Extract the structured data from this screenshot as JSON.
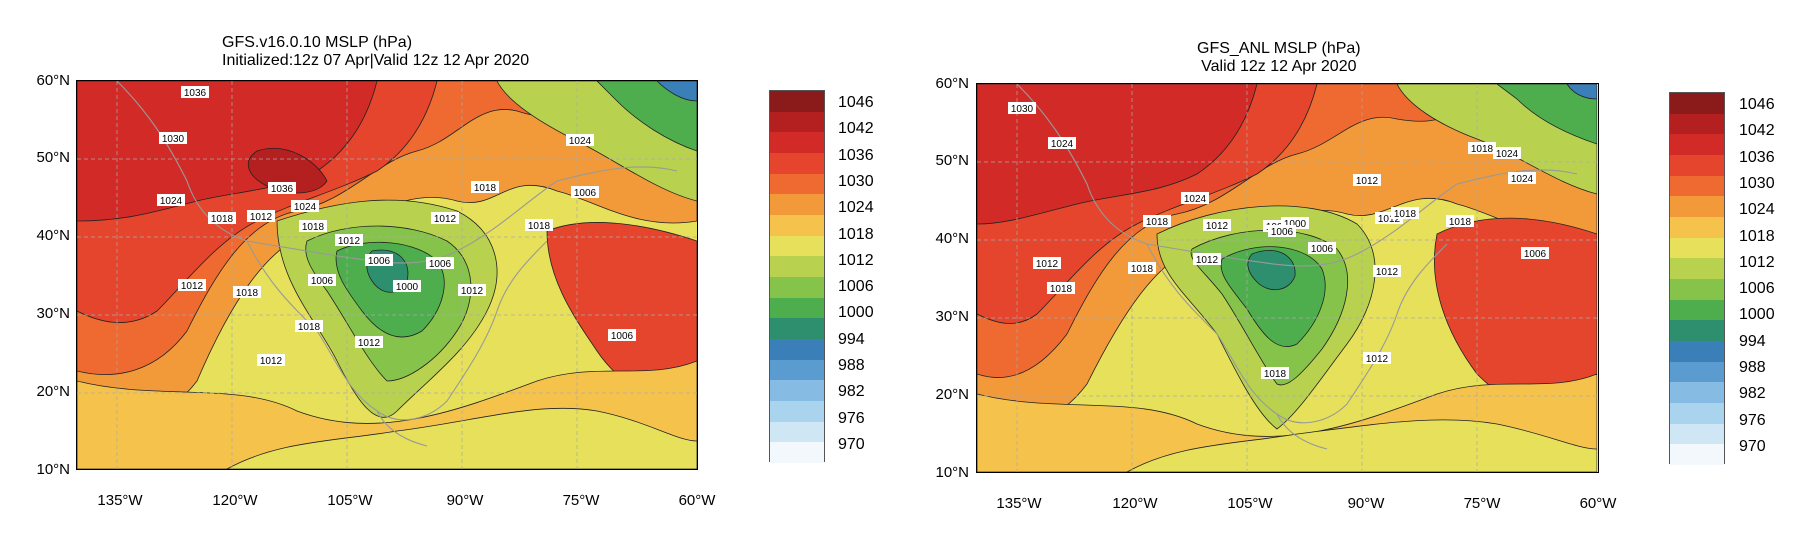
{
  "left_panel": {
    "title_line1": "GFS.v16.0.10 MSLP (hPa)",
    "title_line2": "Initialized:12z 07 Apr|Valid 12z 12 Apr 2020",
    "contour_labels": [
      "1036",
      "1030",
      "1024",
      "1018",
      "1012",
      "1036",
      "1024",
      "1018",
      "1012",
      "1006",
      "1000",
      "1006",
      "1012",
      "1018",
      "1018",
      "1024",
      "1006",
      "1006",
      "1012",
      "1018",
      "1012",
      "1018",
      "1012",
      "1012",
      "1006"
    ]
  },
  "right_panel": {
    "title_line1": "GFS_ANL MSLP (hPa)",
    "title_line2": "Valid 12z 12 Apr 2020",
    "contour_labels": [
      "1030",
      "1024",
      "1024",
      "1018",
      "1012",
      "1006",
      "1000",
      "1006",
      "1012",
      "1012",
      "1018",
      "1018",
      "1024",
      "1006",
      "1018",
      "1024",
      "1012",
      "1018",
      "1012",
      "1018",
      "1018",
      "1012",
      "1006",
      "1012"
    ]
  },
  "lat_labels": [
    "60°N",
    "50°N",
    "40°N",
    "30°N",
    "20°N",
    "10°N"
  ],
  "lon_labels": [
    "135°W",
    "120°W",
    "105°W",
    "90°W",
    "75°W",
    "60°W"
  ],
  "colorbar": {
    "labels": [
      "1046",
      "1042",
      "1036",
      "1030",
      "1024",
      "1018",
      "1012",
      "1006",
      "1000",
      "994",
      "988",
      "982",
      "976",
      "970"
    ],
    "colors": [
      "#8b1a1a",
      "#b41f1f",
      "#d22b27",
      "#e4452c",
      "#ee6a30",
      "#f29a3a",
      "#f5c34c",
      "#e6e05a",
      "#b8d24f",
      "#86c34b",
      "#4eae4e",
      "#2e8f6e",
      "#3b7fb8",
      "#5a9bd0",
      "#86bbe3",
      "#aad3ee",
      "#cfe6f5",
      "#f2f8fc"
    ]
  }
}
